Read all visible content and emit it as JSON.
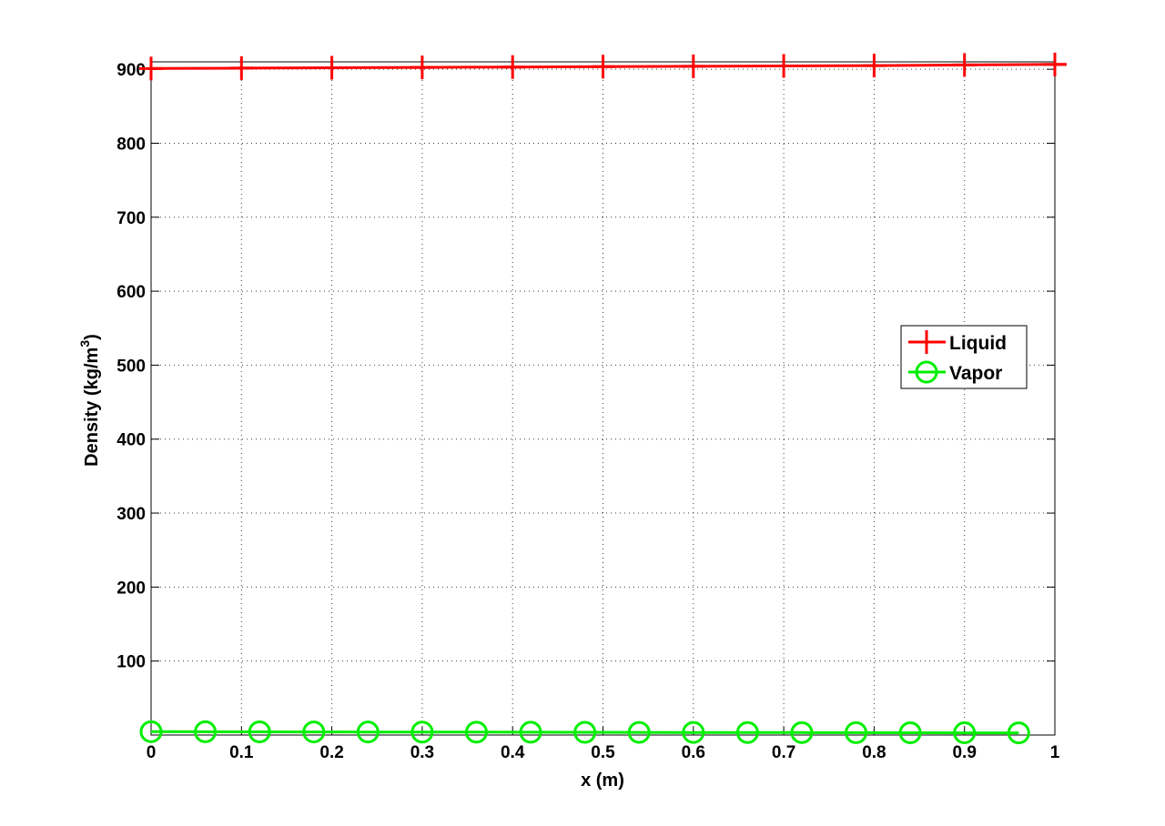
{
  "chart_data": {
    "type": "line",
    "title": "",
    "xlabel": "x (m)",
    "ylabel_main": "Density (kg/m",
    "ylabel_sup": "3",
    "ylabel_close": ")",
    "xlim": [
      0,
      1
    ],
    "ylim": [
      0,
      910
    ],
    "grid": true,
    "legend_position": "right",
    "x_ticks": [
      {
        "value": 0,
        "label": "0"
      },
      {
        "value": 0.1,
        "label": "0.1"
      },
      {
        "value": 0.2,
        "label": "0.2"
      },
      {
        "value": 0.3,
        "label": "0.3"
      },
      {
        "value": 0.4,
        "label": "0.4"
      },
      {
        "value": 0.5,
        "label": "0.5"
      },
      {
        "value": 0.6,
        "label": "0.6"
      },
      {
        "value": 0.7,
        "label": "0.7"
      },
      {
        "value": 0.8,
        "label": "0.8"
      },
      {
        "value": 0.9,
        "label": "0.9"
      },
      {
        "value": 1,
        "label": "1"
      }
    ],
    "y_ticks": [
      {
        "value": 100,
        "label": "100"
      },
      {
        "value": 200,
        "label": "200"
      },
      {
        "value": 300,
        "label": "300"
      },
      {
        "value": 400,
        "label": "400"
      },
      {
        "value": 500,
        "label": "500"
      },
      {
        "value": 600,
        "label": "600"
      },
      {
        "value": 700,
        "label": "700"
      },
      {
        "value": 800,
        "label": "800"
      },
      {
        "value": 900,
        "label": "900"
      }
    ],
    "series": [
      {
        "name": "Liquid",
        "color": "#ff0000",
        "marker": "plus",
        "x": [
          0,
          0.1,
          0.2,
          0.3,
          0.4,
          0.5,
          0.6,
          0.7,
          0.8,
          0.9,
          1.0
        ],
        "y": [
          901,
          901.5,
          902,
          902.5,
          903,
          903.5,
          904,
          904.5,
          905,
          905.8,
          906.5
        ]
      },
      {
        "name": "Vapor",
        "color": "#00ee00",
        "marker": "circle",
        "x": [
          0,
          0.06,
          0.12,
          0.18,
          0.24,
          0.3,
          0.36,
          0.42,
          0.48,
          0.54,
          0.6,
          0.66,
          0.72,
          0.78,
          0.84,
          0.9,
          0.96
        ],
        "y": [
          4.5,
          4.4,
          4.3,
          4.2,
          4.1,
          4.0,
          3.9,
          3.8,
          3.7,
          3.6,
          3.5,
          3.4,
          3.3,
          3.2,
          3.1,
          3.0,
          2.9
        ]
      }
    ]
  }
}
